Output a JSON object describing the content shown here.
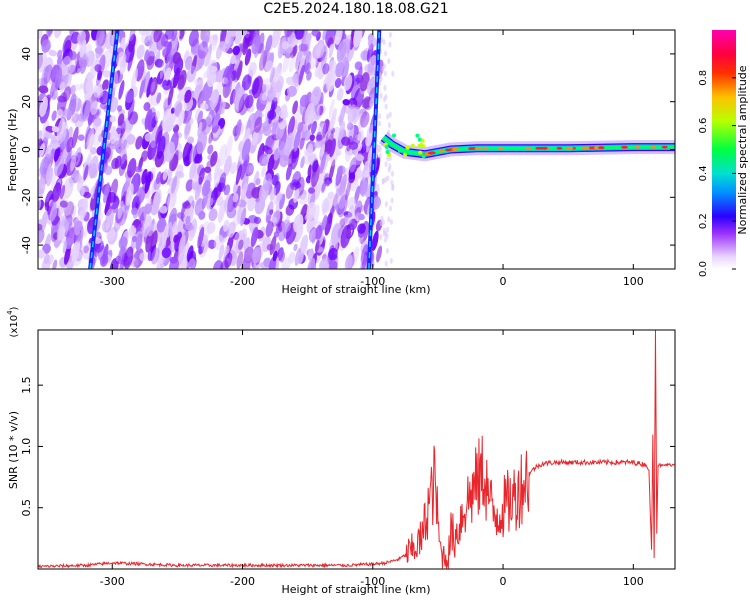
{
  "title": "C2E5.2024.180.18.08.G21",
  "colors": {
    "snr_line": "#e8262b",
    "spectrogram_scale": [
      "#ffffff",
      "#d9b8ff",
      "#8a2be2",
      "#3c00ff",
      "#00b4ff",
      "#00ff7f",
      "#c8ff00",
      "#ffd200",
      "#ff5000",
      "#ff0000",
      "#ff0090"
    ]
  },
  "chart_data": [
    {
      "type": "heatmap",
      "name": "spectrogram",
      "xlabel": "Height of straight line (km)",
      "ylabel": "Frequency (Hz)",
      "xlim": [
        -357,
        132
      ],
      "ylim": [
        -50,
        50
      ],
      "x_ticks": [
        "-300",
        "-200",
        "-100",
        "0",
        "100"
      ],
      "y_ticks": [
        "-40",
        "-20",
        "0",
        "20",
        "40"
      ],
      "colorbar": {
        "label": "Normalized spectral amplitude",
        "range": [
          0,
          1
        ],
        "ticks": [
          "0.0",
          "0.2",
          "0.4",
          "0.6",
          "0.8"
        ]
      },
      "noise_region_x": [
        -357,
        -95
      ],
      "signal_track": {
        "x_start": -92,
        "x_end": 132,
        "frequency_hz": [
          [
            -92,
            5
          ],
          [
            -85,
            2
          ],
          [
            -75,
            -1
          ],
          [
            -60,
            -2
          ],
          [
            -40,
            0
          ],
          [
            -20,
            0.5
          ],
          [
            0,
            0.5
          ],
          [
            50,
            0.5
          ],
          [
            100,
            1
          ],
          [
            132,
            1
          ]
        ]
      },
      "diagonal_lines": [
        {
          "x_at_ymin": -317,
          "x_at_ymax": -296
        },
        {
          "x_at_ymin": -103,
          "x_at_ymax": -95
        }
      ]
    },
    {
      "type": "line",
      "name": "snr",
      "xlabel": "Height of straight line (km)",
      "ylabel": "SNR (10 * v/v)",
      "y_multiplier": "(x10",
      "y_multiplier_exponent": "4",
      "y_multiplier_close": ")",
      "xlim": [
        -357,
        132
      ],
      "ylim": [
        0,
        1.95
      ],
      "x_ticks": [
        "-300",
        "-200",
        "-100",
        "0",
        "100"
      ],
      "y_ticks": [
        "0.5",
        "1.0",
        "1.5"
      ],
      "series": [
        {
          "x": [
            -357,
            -320,
            -300,
            -250,
            -200,
            -150,
            -120,
            -100,
            -90,
            -80,
            -70,
            -62,
            -58,
            -55,
            -52,
            -50,
            -48,
            -45,
            -42,
            -40,
            -37,
            -34,
            -30,
            -25,
            -20,
            -15,
            -10,
            -8,
            -5,
            0,
            5,
            10,
            15,
            20,
            25,
            30,
            40,
            50,
            60,
            70,
            80,
            90,
            100,
            105,
            110,
            112,
            114,
            115,
            116,
            117,
            118,
            119,
            120,
            122,
            125,
            132
          ],
          "values": [
            0.02,
            0.03,
            0.05,
            0.03,
            0.03,
            0.03,
            0.03,
            0.04,
            0.05,
            0.08,
            0.15,
            0.25,
            0.5,
            0.6,
            0.75,
            0.35,
            0.15,
            0.1,
            0.1,
            0.3,
            0.25,
            0.35,
            0.5,
            0.6,
            0.7,
            0.8,
            0.55,
            0.45,
            0.45,
            0.5,
            0.55,
            0.6,
            0.7,
            0.78,
            0.83,
            0.86,
            0.87,
            0.87,
            0.87,
            0.87,
            0.87,
            0.87,
            0.87,
            0.86,
            0.85,
            0.8,
            0.15,
            1.1,
            0.1,
            1.95,
            0.3,
            0.85,
            0.85,
            0.84,
            0.85,
            0.85
          ]
        }
      ]
    }
  ]
}
